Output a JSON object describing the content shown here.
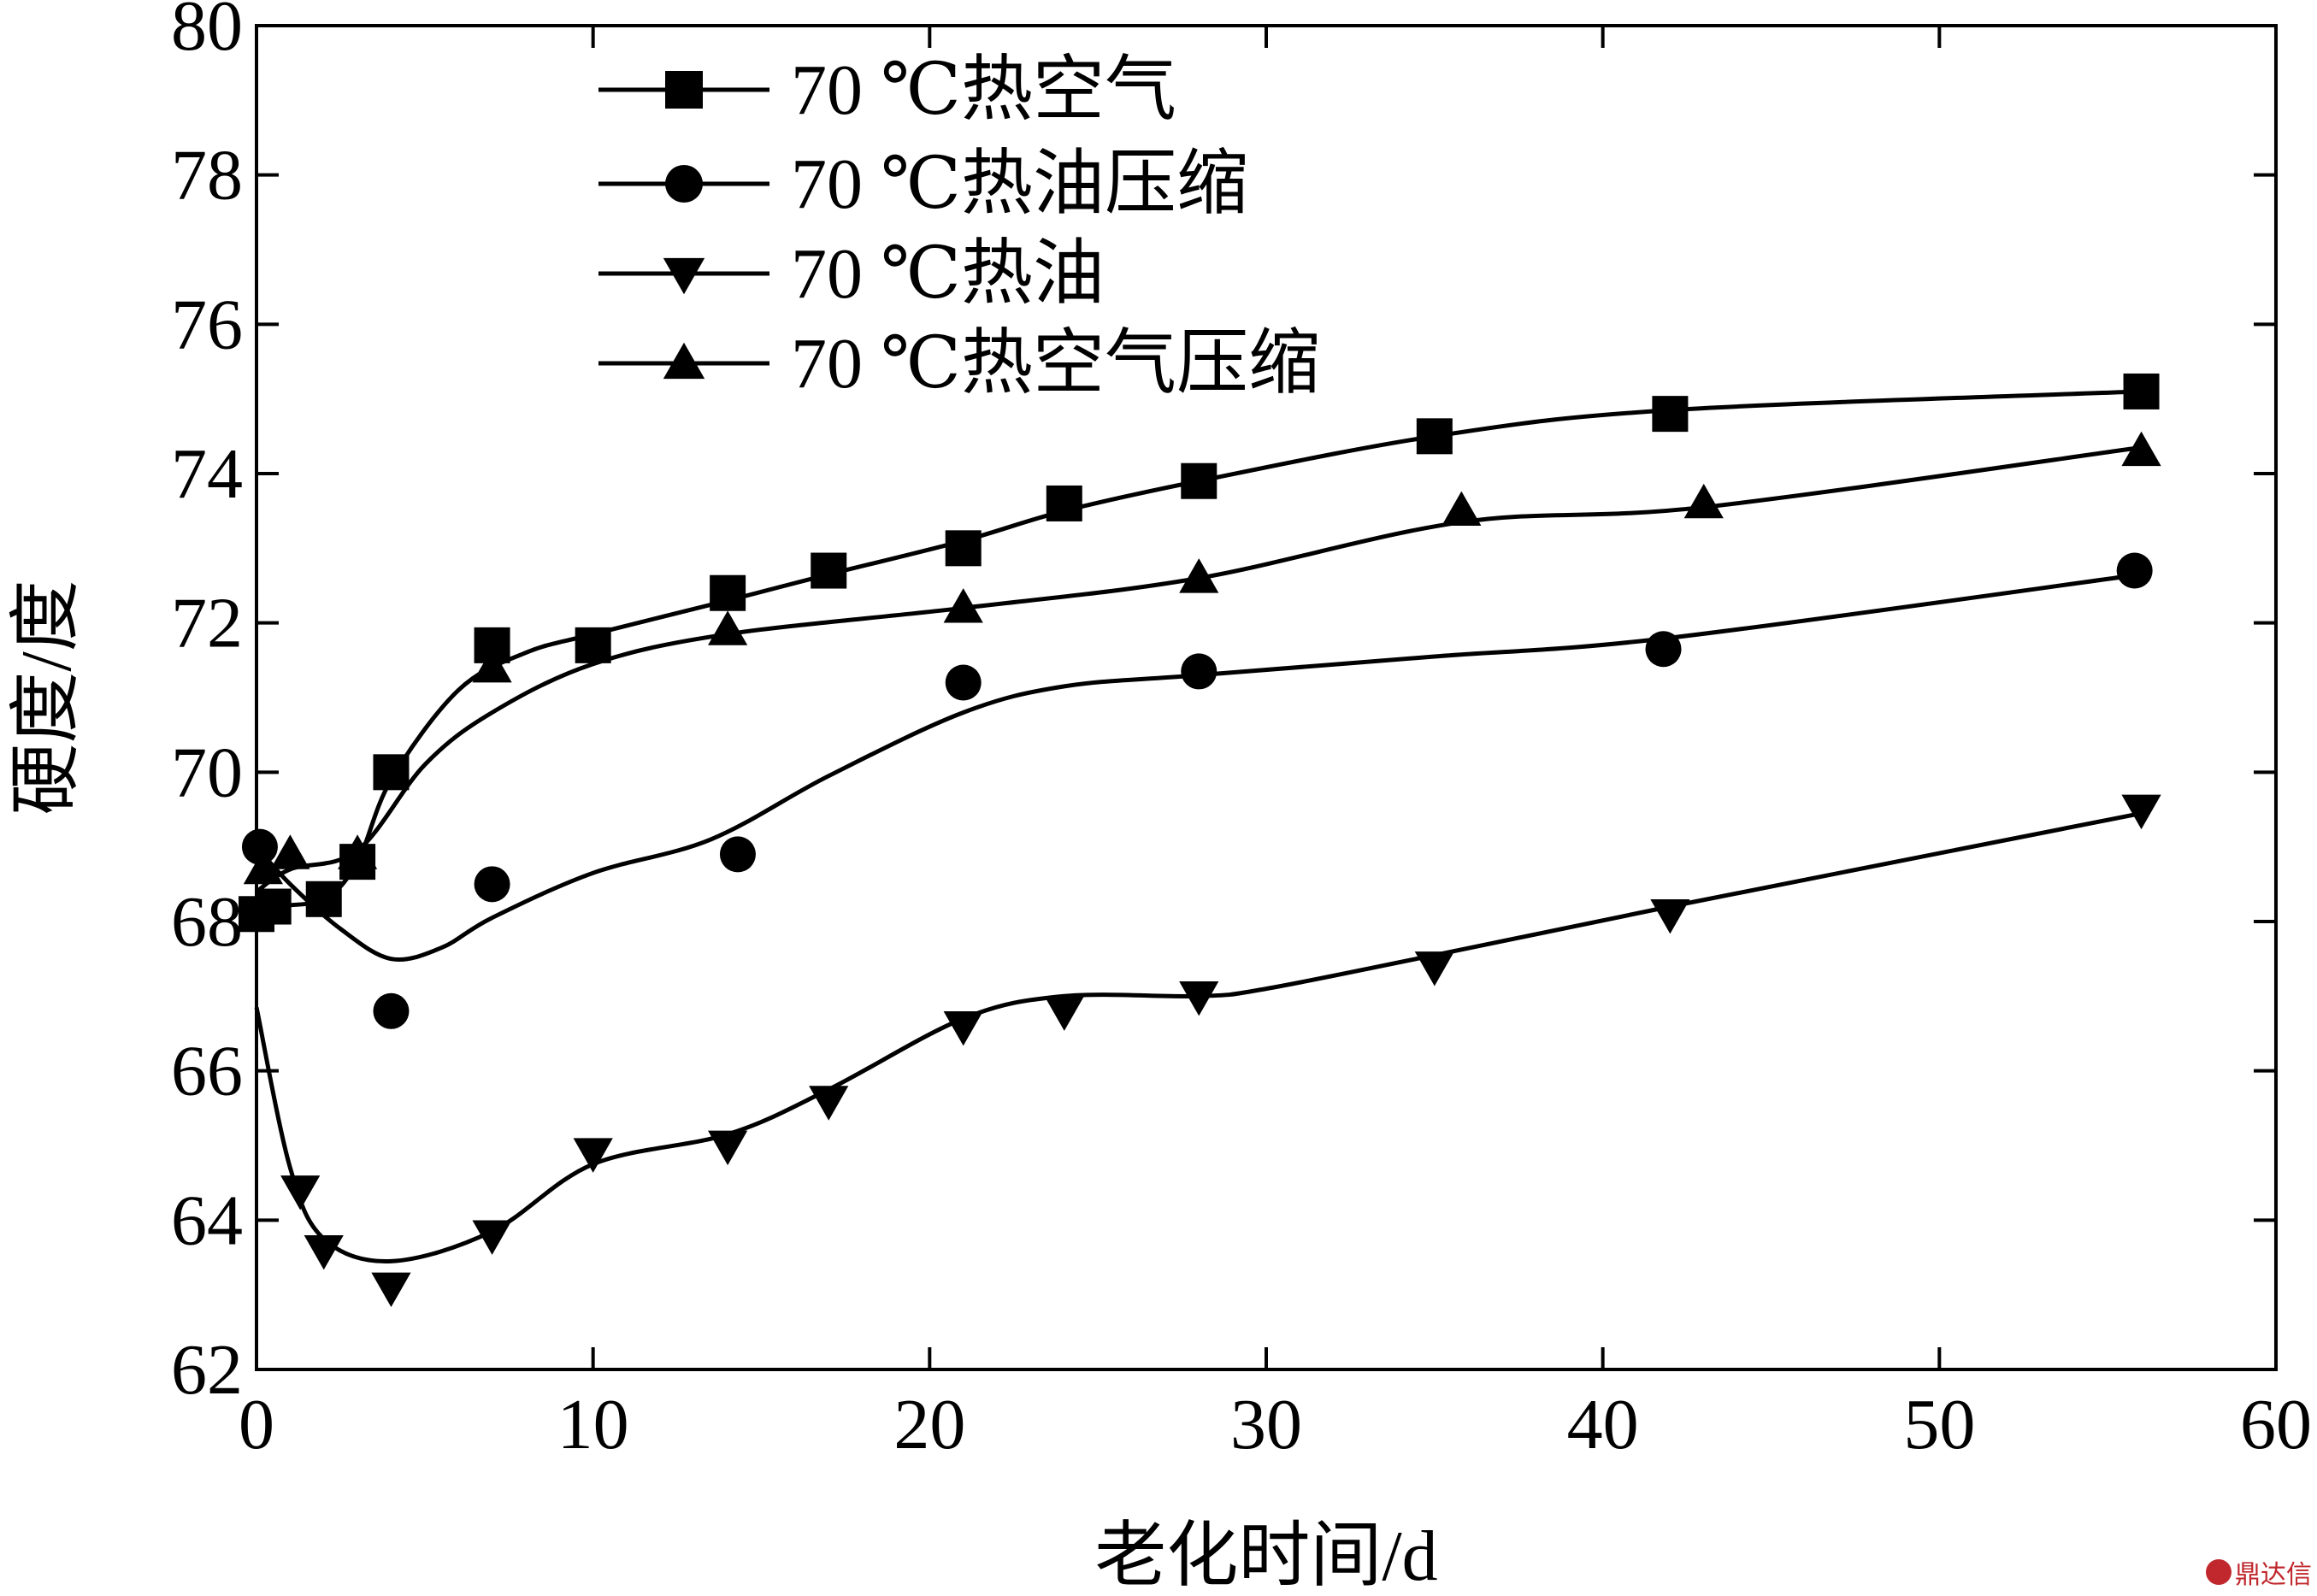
{
  "chart_data": {
    "type": "line",
    "xlabel": "老化时间/d",
    "ylabel": "硬度/度",
    "xlim": [
      0,
      60
    ],
    "ylim": [
      62,
      80
    ],
    "xticks": [
      0,
      10,
      20,
      30,
      40,
      50,
      60
    ],
    "yticks": [
      62,
      64,
      66,
      68,
      70,
      72,
      74,
      76,
      78,
      80
    ],
    "grid": false,
    "legend_position": "top-center",
    "series": [
      {
        "name": "70 ℃热空气",
        "marker": "square",
        "points": [
          [
            0,
            68.1
          ],
          [
            0.5,
            68.2
          ],
          [
            2,
            68.3
          ],
          [
            3,
            68.8
          ],
          [
            4,
            70.0
          ],
          [
            7,
            71.7
          ],
          [
            10,
            71.7
          ],
          [
            14,
            72.4
          ],
          [
            17,
            72.7
          ],
          [
            21,
            73.0
          ],
          [
            24,
            73.6
          ],
          [
            28,
            73.9
          ],
          [
            35,
            74.5
          ],
          [
            42,
            74.8
          ],
          [
            56,
            75.1
          ]
        ],
        "curve": [
          [
            0,
            68.1
          ],
          [
            0.5,
            68.2
          ],
          [
            2,
            68.3
          ],
          [
            3,
            68.8
          ],
          [
            4,
            69.9
          ],
          [
            6,
            71.1
          ],
          [
            8,
            71.6
          ],
          [
            10,
            71.85
          ],
          [
            14,
            72.3
          ],
          [
            17,
            72.65
          ],
          [
            21,
            73.1
          ],
          [
            24,
            73.5
          ],
          [
            28,
            73.9
          ],
          [
            35,
            74.5
          ],
          [
            42,
            74.85
          ],
          [
            56,
            75.1
          ]
        ]
      },
      {
        "name": "70 ℃热油压缩",
        "marker": "circle",
        "points": [
          [
            0.1,
            69.0
          ],
          [
            4,
            66.8
          ],
          [
            7,
            68.5
          ],
          [
            14.3,
            68.9
          ],
          [
            21,
            71.2
          ],
          [
            28,
            71.35
          ],
          [
            41.8,
            71.65
          ],
          [
            55.8,
            72.7
          ]
        ],
        "curve": [
          [
            0,
            69.0
          ],
          [
            1,
            68.5
          ],
          [
            2.5,
            67.9
          ],
          [
            4,
            67.5
          ],
          [
            5.5,
            67.65
          ],
          [
            7,
            68.05
          ],
          [
            10,
            68.65
          ],
          [
            13.5,
            69.1
          ],
          [
            17,
            69.95
          ],
          [
            21,
            70.8
          ],
          [
            24,
            71.15
          ],
          [
            28,
            71.3
          ],
          [
            35,
            71.55
          ],
          [
            42,
            71.8
          ],
          [
            56,
            72.65
          ]
        ]
      },
      {
        "name": "70 ℃热油",
        "marker": "triangle-down",
        "points": [
          [
            1.3,
            64.4
          ],
          [
            2,
            63.6
          ],
          [
            4,
            63.1
          ],
          [
            7,
            63.8
          ],
          [
            10,
            64.9
          ],
          [
            14,
            65.0
          ],
          [
            17,
            65.6
          ],
          [
            21,
            66.6
          ],
          [
            24,
            66.8
          ],
          [
            28,
            67.0
          ],
          [
            35,
            67.4
          ],
          [
            42,
            68.1
          ],
          [
            56,
            69.5
          ]
        ],
        "curve": [
          [
            0,
            66.85
          ],
          [
            1,
            64.7
          ],
          [
            2,
            63.75
          ],
          [
            4,
            63.45
          ],
          [
            7,
            63.85
          ],
          [
            10,
            64.75
          ],
          [
            14,
            65.15
          ],
          [
            17,
            65.75
          ],
          [
            21,
            66.7
          ],
          [
            24,
            67.0
          ],
          [
            28,
            67.0
          ],
          [
            30,
            67.1
          ],
          [
            35,
            67.55
          ],
          [
            42,
            68.2
          ],
          [
            56,
            69.45
          ]
        ]
      },
      {
        "name": "70 ℃热空气压缩",
        "marker": "triangle-up",
        "points": [
          [
            0.2,
            68.7
          ],
          [
            1,
            68.9
          ],
          [
            3,
            68.9
          ],
          [
            7,
            71.4
          ],
          [
            14,
            71.9
          ],
          [
            21,
            72.2
          ],
          [
            28,
            72.6
          ],
          [
            35.8,
            73.5
          ],
          [
            43,
            73.6
          ],
          [
            56,
            74.3
          ]
        ],
        "curve": [
          [
            0,
            68.4
          ],
          [
            1,
            68.7
          ],
          [
            3,
            68.95
          ],
          [
            5,
            70.1
          ],
          [
            7,
            70.8
          ],
          [
            10,
            71.45
          ],
          [
            14,
            71.85
          ],
          [
            21,
            72.2
          ],
          [
            28,
            72.6
          ],
          [
            35.8,
            73.35
          ],
          [
            43,
            73.55
          ],
          [
            56,
            74.35
          ]
        ]
      }
    ]
  },
  "watermark": "鼎达信"
}
